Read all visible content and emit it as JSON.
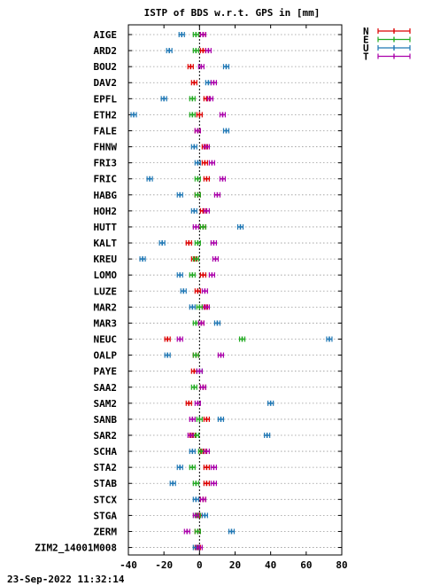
{
  "chart_data": {
    "type": "scatter",
    "title": "ISTP of BDS w.r.t. GPS in [mm]",
    "timestamp": "23-Sep-2022 11:32:14",
    "xlim": [
      -40,
      80
    ],
    "xticks": [
      -40,
      -20,
      0,
      20,
      40,
      60,
      80
    ],
    "grid": "horizontal dotted per station",
    "legend_position": "top-right outside",
    "series": [
      {
        "name": "N",
        "color": "#dd0000"
      },
      {
        "name": "E",
        "color": "#22aa22"
      },
      {
        "name": "U",
        "color": "#1f77b4"
      },
      {
        "name": "T",
        "color": "#aa00aa"
      }
    ],
    "stations": [
      {
        "name": "AIGE",
        "N": 2,
        "E": -2,
        "U": -10,
        "T": 2
      },
      {
        "name": "ARD2",
        "N": 2,
        "E": -2,
        "U": -17,
        "T": 5
      },
      {
        "name": "BOU2",
        "N": -5,
        "E": null,
        "U": 15,
        "T": 1
      },
      {
        "name": "DAV2",
        "N": -3,
        "E": null,
        "U": 5,
        "T": 8
      },
      {
        "name": "EPFL",
        "N": 4,
        "E": -4,
        "U": -20,
        "T": 6
      },
      {
        "name": "ETH2",
        "N": 0,
        "E": -4,
        "U": -37,
        "T": 13
      },
      {
        "name": "FALE",
        "N": -1,
        "E": null,
        "U": 15,
        "T": -1
      },
      {
        "name": "FHNW",
        "N": 3,
        "E": null,
        "U": -3,
        "T": 4
      },
      {
        "name": "FRI3",
        "N": 3,
        "E": null,
        "U": -1,
        "T": 7
      },
      {
        "name": "FRIC",
        "N": 4,
        "E": -1,
        "U": -28,
        "T": 13
      },
      {
        "name": "HABG",
        "N": -1,
        "E": -1,
        "U": -11,
        "T": 10
      },
      {
        "name": "HOH2",
        "N": 2,
        "E": null,
        "U": -3,
        "T": 4
      },
      {
        "name": "HUTT",
        "N": 2,
        "E": 2,
        "U": 23,
        "T": -2
      },
      {
        "name": "KALT",
        "N": -6,
        "E": -1,
        "U": -21,
        "T": 8
      },
      {
        "name": "KREU",
        "N": -3,
        "E": -2,
        "U": -32,
        "T": 9
      },
      {
        "name": "LOMO",
        "N": 2,
        "E": -4,
        "U": -11,
        "T": 7
      },
      {
        "name": "LUZE",
        "N": -1,
        "E": null,
        "U": -9,
        "T": 3
      },
      {
        "name": "MAR2",
        "N": 3,
        "E": 0,
        "U": -4,
        "T": 4
      },
      {
        "name": "MAR3",
        "N": 1,
        "E": -2,
        "U": 10,
        "T": 1
      },
      {
        "name": "NEUC",
        "N": -18,
        "E": 24,
        "U": 73,
        "T": -11
      },
      {
        "name": "OALP",
        "N": -2,
        "E": -2,
        "U": -18,
        "T": 12
      },
      {
        "name": "PAYE",
        "N": -3,
        "E": null,
        "U": 0,
        "T": 0
      },
      {
        "name": "SAA2",
        "N": 2,
        "E": -3,
        "U": null,
        "T": 2
      },
      {
        "name": "SAM2",
        "N": -6,
        "E": null,
        "U": 40,
        "T": -1
      },
      {
        "name": "SANB",
        "N": 4,
        "E": 0,
        "U": 12,
        "T": -4
      },
      {
        "name": "SAR2",
        "N": -4,
        "E": -2,
        "U": 38,
        "T": -5
      },
      {
        "name": "SCHA",
        "N": 2,
        "E": 1,
        "U": -4,
        "T": 4
      },
      {
        "name": "STA2",
        "N": 4,
        "E": -4,
        "U": -11,
        "T": 8
      },
      {
        "name": "STAB",
        "N": 4,
        "E": -2,
        "U": -15,
        "T": 8
      },
      {
        "name": "STCX",
        "N": 2,
        "E": null,
        "U": -2,
        "T": 2
      },
      {
        "name": "STGA",
        "N": 0,
        "E": -1,
        "U": 3,
        "T": -2
      },
      {
        "name": "ZERM",
        "N": -1,
        "E": -1,
        "U": 18,
        "T": -7
      },
      {
        "name": "ZIM2_14001M008",
        "N": -1,
        "E": null,
        "U": -2,
        "T": 0
      }
    ]
  }
}
